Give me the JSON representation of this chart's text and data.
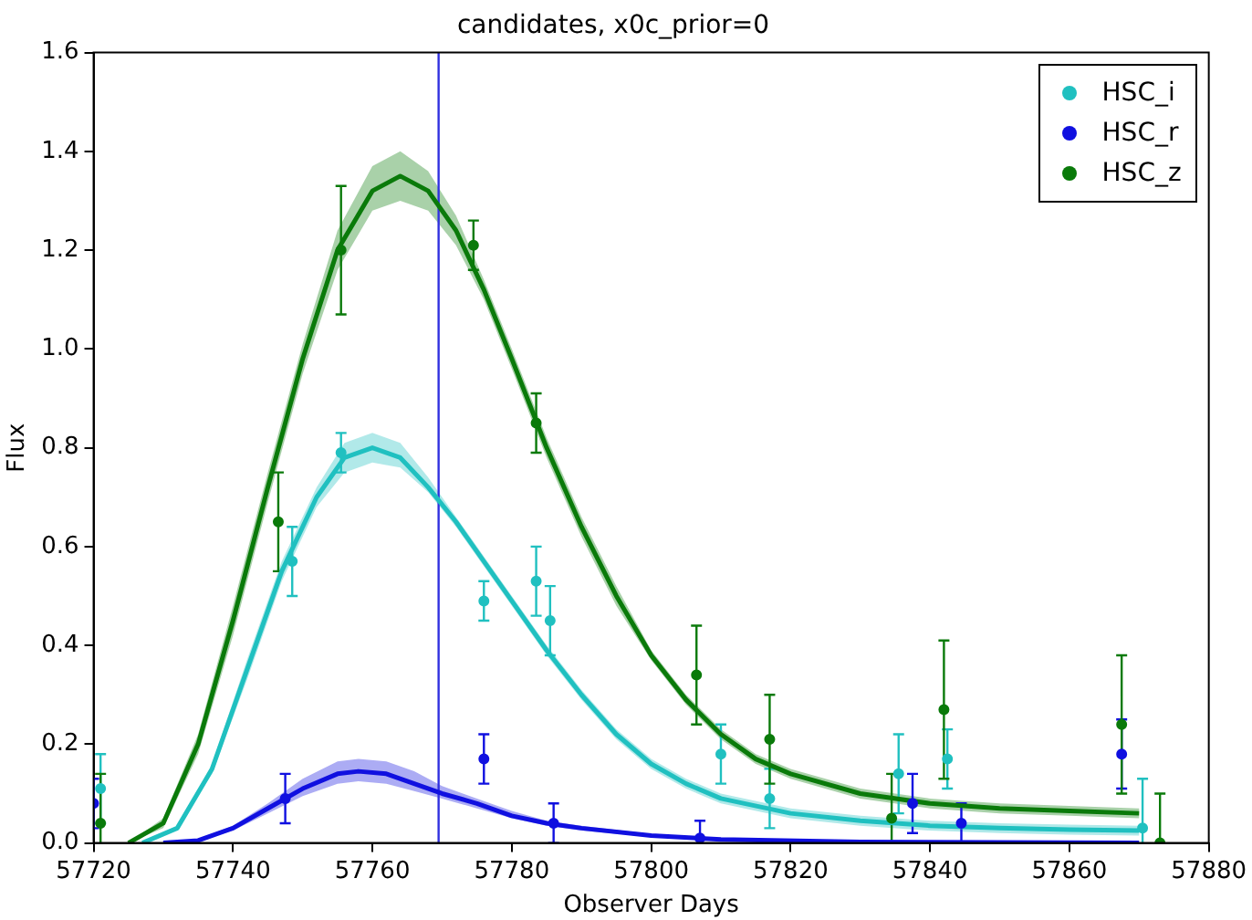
{
  "chart_data": {
    "type": "scatter",
    "title": "candidates, x0c_prior=0",
    "xlabel": "Observer Days",
    "ylabel": "Flux",
    "xlim": [
      57720,
      57880
    ],
    "xticks": [
      57720,
      57740,
      57760,
      57780,
      57800,
      57820,
      57840,
      57860,
      57880
    ],
    "ylim": [
      0,
      1.6
    ],
    "yticks": [
      {
        "value": 0,
        "label": "0.0"
      },
      0.2,
      0.4,
      0.6,
      0.8,
      {
        "value": 1,
        "label": "1.0"
      },
      1.2,
      1.4,
      1.6
    ],
    "grid": false,
    "legend": "top right",
    "marker": "circle",
    "ref_lines": [
      {
        "axis": "x",
        "value": 57769.5,
        "color": "#3030e0"
      }
    ],
    "series": [
      {
        "name": "HSC_i",
        "type": "scatter",
        "color": "#20c0c0",
        "x": [
          57721,
          57748.5,
          57755.5,
          57776,
          57783.5,
          57785.5,
          57810,
          57817,
          57835.5,
          57842.5,
          57870.5
        ],
        "values": [
          0.11,
          0.57,
          0.79,
          0.49,
          0.53,
          0.45,
          0.18,
          0.09,
          0.14,
          0.17,
          0.03
        ],
        "errors": [
          0.07,
          0.07,
          0.04,
          0.04,
          0.07,
          0.07,
          0.06,
          0.06,
          0.08,
          0.06,
          0.1
        ]
      },
      {
        "name": "HSC_r",
        "type": "scatter",
        "color": "#1010e0",
        "x": [
          57720,
          57747.5,
          57776,
          57786,
          57807,
          57837.5,
          57844.5,
          57867.5
        ],
        "values": [
          0.08,
          0.09,
          0.17,
          0.04,
          0.01,
          0.08,
          0.04,
          0.18
        ],
        "errors": [
          0.05,
          0.05,
          0.05,
          0.04,
          0.035,
          0.06,
          0.04,
          0.07
        ]
      },
      {
        "name": "HSC_z",
        "type": "scatter",
        "color": "#0a7a0a",
        "x": [
          57721,
          57746.5,
          57755.5,
          57774.5,
          57783.5,
          57806.5,
          57817,
          57834.5,
          57842,
          57867.5,
          57873
        ],
        "values": [
          0.04,
          0.65,
          1.2,
          1.21,
          0.85,
          0.34,
          0.21,
          0.05,
          0.27,
          0.24,
          0.0
        ],
        "errors": [
          0.1,
          0.1,
          0.13,
          0.05,
          0.06,
          0.1,
          0.09,
          0.09,
          0.14,
          0.14,
          0.1
        ]
      },
      {
        "type": "line",
        "marker": "none",
        "color": "#20c0c0",
        "x": [
          57727,
          57732,
          57737,
          57742,
          57747,
          57752,
          57756,
          57760,
          57764,
          57768,
          57772,
          57776,
          57780,
          57785,
          57790,
          57795,
          57800,
          57805,
          57810,
          57820,
          57830,
          57840,
          57850,
          57860,
          57870
        ],
        "values": [
          0,
          0.03,
          0.15,
          0.35,
          0.55,
          0.7,
          0.78,
          0.8,
          0.78,
          0.72,
          0.65,
          0.57,
          0.49,
          0.39,
          0.3,
          0.22,
          0.16,
          0.12,
          0.09,
          0.06,
          0.045,
          0.035,
          0.03,
          0.027,
          0.025
        ],
        "lower": [
          0,
          0.03,
          0.14,
          0.33,
          0.53,
          0.68,
          0.75,
          0.77,
          0.76,
          0.71,
          0.64,
          0.56,
          0.48,
          0.38,
          0.29,
          0.21,
          0.15,
          0.11,
          0.08,
          0.05,
          0.035,
          0.025,
          0.02,
          0.017,
          0.015
        ],
        "upper": [
          0,
          0.03,
          0.16,
          0.37,
          0.57,
          0.72,
          0.81,
          0.83,
          0.81,
          0.74,
          0.66,
          0.58,
          0.5,
          0.4,
          0.31,
          0.23,
          0.17,
          0.13,
          0.1,
          0.07,
          0.055,
          0.045,
          0.04,
          0.037,
          0.035
        ]
      },
      {
        "type": "line",
        "marker": "none",
        "color": "#1010e0",
        "x": [
          57730,
          57735,
          57740,
          57745,
          57750,
          57755,
          57758,
          57762,
          57766,
          57770,
          57775,
          57780,
          57785,
          57790,
          57800,
          57810,
          57830,
          57870
        ],
        "values": [
          0,
          0.005,
          0.03,
          0.07,
          0.11,
          0.14,
          0.145,
          0.14,
          0.12,
          0.1,
          0.08,
          0.055,
          0.04,
          0.03,
          0.015,
          0.007,
          0.002,
          0
        ],
        "lower": [
          0,
          0.003,
          0.025,
          0.06,
          0.095,
          0.12,
          0.125,
          0.12,
          0.105,
          0.09,
          0.07,
          0.05,
          0.035,
          0.025,
          0.012,
          0.005,
          0.001,
          0
        ],
        "upper": [
          0,
          0.008,
          0.035,
          0.08,
          0.13,
          0.165,
          0.17,
          0.165,
          0.145,
          0.115,
          0.09,
          0.065,
          0.045,
          0.035,
          0.018,
          0.009,
          0.003,
          0
        ]
      },
      {
        "type": "line",
        "marker": "none",
        "color": "#0a7a0a",
        "x": [
          57725,
          57730,
          57735,
          57740,
          57745,
          57750,
          57755,
          57760,
          57764,
          57768,
          57772,
          57776,
          57780,
          57785,
          57790,
          57795,
          57800,
          57805,
          57810,
          57815,
          57820,
          57830,
          57840,
          57850,
          57860,
          57870
        ],
        "values": [
          0,
          0.04,
          0.2,
          0.45,
          0.72,
          0.98,
          1.2,
          1.32,
          1.35,
          1.32,
          1.24,
          1.12,
          0.98,
          0.8,
          0.64,
          0.5,
          0.38,
          0.29,
          0.22,
          0.17,
          0.14,
          0.1,
          0.08,
          0.07,
          0.065,
          0.06
        ],
        "lower": [
          0,
          0.03,
          0.18,
          0.42,
          0.69,
          0.95,
          1.16,
          1.28,
          1.3,
          1.28,
          1.21,
          1.1,
          0.96,
          0.78,
          0.62,
          0.48,
          0.37,
          0.28,
          0.21,
          0.16,
          0.13,
          0.09,
          0.07,
          0.06,
          0.055,
          0.05
        ],
        "upper": [
          0,
          0.05,
          0.22,
          0.48,
          0.75,
          1.01,
          1.24,
          1.37,
          1.4,
          1.36,
          1.27,
          1.14,
          1.0,
          0.82,
          0.66,
          0.52,
          0.39,
          0.3,
          0.23,
          0.18,
          0.15,
          0.11,
          0.09,
          0.08,
          0.075,
          0.07
        ]
      }
    ]
  }
}
